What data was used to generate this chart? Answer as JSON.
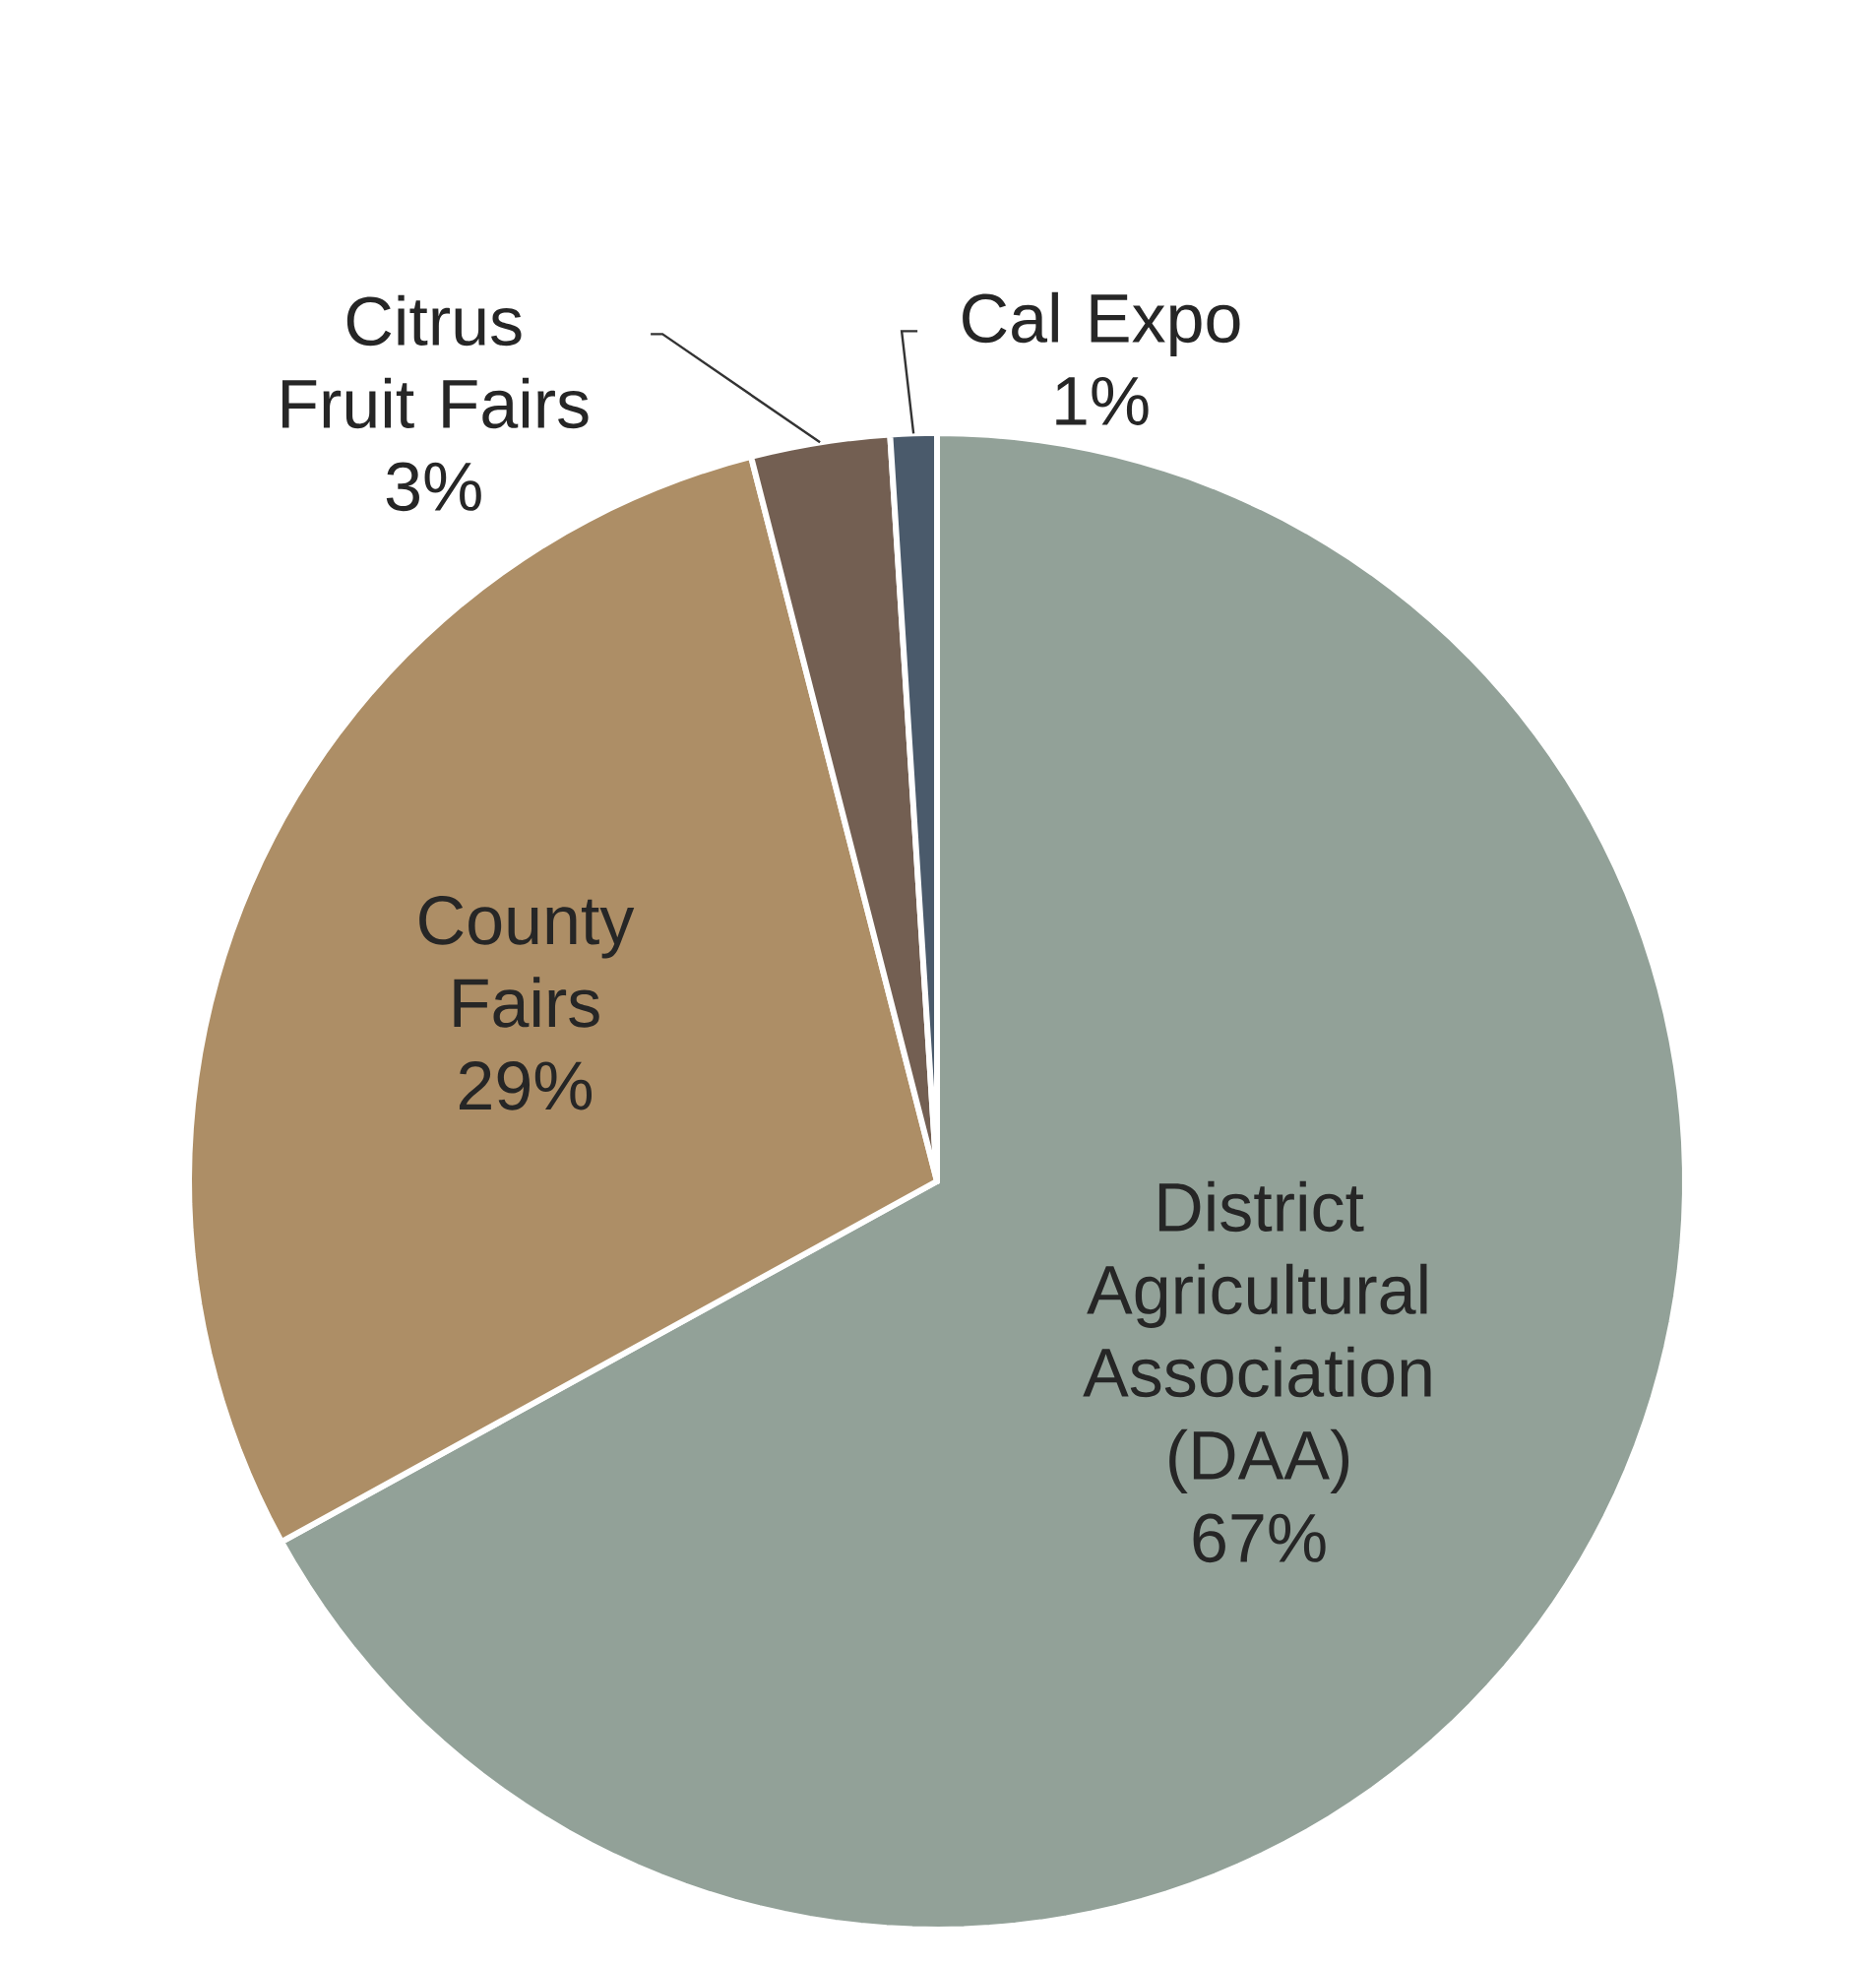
{
  "chart_data": {
    "type": "pie",
    "categories": [
      "District Agricultural Association (DAA)",
      "County Fairs",
      "Citrus Fruit Fairs",
      "Cal Expo"
    ],
    "values": [
      67,
      29,
      3,
      1
    ],
    "colors": [
      "#92a198",
      "#ad8e66",
      "#735f52",
      "#4a5a6b"
    ],
    "value_labels": [
      "67%",
      "29%",
      "3%",
      "1%"
    ]
  }
}
